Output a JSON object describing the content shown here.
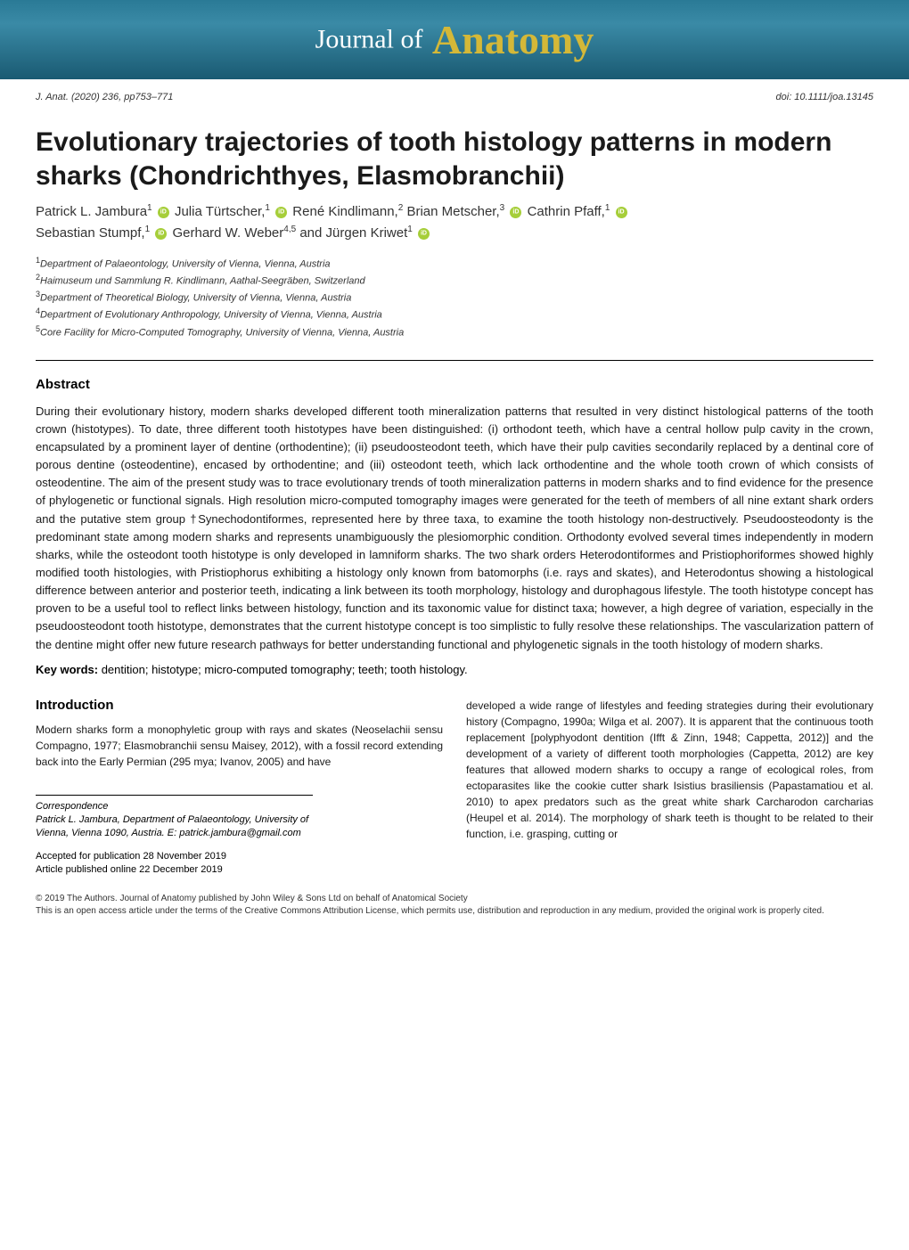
{
  "banner": {
    "journal_of": "Journal of",
    "anatomy": "Anatomy"
  },
  "meta": {
    "citation": "J. Anat. (2020) 236, pp753–771",
    "doi": "doi: 10.1111/joa.13145"
  },
  "title": "Evolutionary trajectories of tooth histology patterns in modern sharks (Chondrichthyes, Elasmobranchii)",
  "authors": [
    {
      "name": "Patrick L. Jambura",
      "sup": "1",
      "orcid": true
    },
    {
      "name": "Julia Türtscher,",
      "sup": "1",
      "orcid": true
    },
    {
      "name": "René Kindlimann,",
      "sup": "2",
      "orcid": false
    },
    {
      "name": "Brian Metscher,",
      "sup": "3",
      "orcid": true
    },
    {
      "name": "Cathrin Pfaff,",
      "sup": "1",
      "orcid": true
    },
    {
      "name": "Sebastian Stumpf,",
      "sup": "1",
      "orcid": true
    },
    {
      "name": "Gerhard W. Weber",
      "sup": "4,5",
      "orcid": false
    },
    {
      "name": "and Jürgen Kriwet",
      "sup": "1",
      "orcid": true
    }
  ],
  "affiliations": [
    {
      "num": "1",
      "text": "Department of Palaeontology, University of Vienna, Vienna, Austria"
    },
    {
      "num": "2",
      "text": "Haimuseum und Sammlung R. Kindlimann, Aathal-Seegräben, Switzerland"
    },
    {
      "num": "3",
      "text": "Department of Theoretical Biology, University of Vienna, Vienna, Austria"
    },
    {
      "num": "4",
      "text": "Department of Evolutionary Anthropology, University of Vienna, Vienna, Austria"
    },
    {
      "num": "5",
      "text": "Core Facility for Micro-Computed Tomography, University of Vienna, Vienna, Austria"
    }
  ],
  "abstract": {
    "heading": "Abstract",
    "text": "During their evolutionary history, modern sharks developed different tooth mineralization patterns that resulted in very distinct histological patterns of the tooth crown (histotypes). To date, three different tooth histotypes have been distinguished: (i) orthodont teeth, which have a central hollow pulp cavity in the crown, encapsulated by a prominent layer of dentine (orthodentine); (ii) pseudoosteodont teeth, which have their pulp cavities secondarily replaced by a dentinal core of porous dentine (osteodentine), encased by orthodentine; and (iii) osteodont teeth, which lack orthodentine and the whole tooth crown of which consists of osteodentine. The aim of the present study was to trace evolutionary trends of tooth mineralization patterns in modern sharks and to find evidence for the presence of phylogenetic or functional signals. High resolution micro-computed tomography images were generated for the teeth of members of all nine extant shark orders and the putative stem group †Synechodontiformes, represented here by three taxa, to examine the tooth histology non-destructively. Pseudoosteodonty is the predominant state among modern sharks and represents unambiguously the plesiomorphic condition. Orthodonty evolved several times independently in modern sharks, while the osteodont tooth histotype is only developed in lamniform sharks. The two shark orders Heterodontiformes and Pristiophoriformes showed highly modified tooth histologies, with Pristiophorus exhibiting a histology only known from batomorphs (i.e. rays and skates), and Heterodontus showing a histological difference between anterior and posterior teeth, indicating a link between its tooth morphology, histology and durophagous lifestyle. The tooth histotype concept has proven to be a useful tool to reflect links between histology, function and its taxonomic value for distinct taxa; however, a high degree of variation, especially in the pseudoosteodont tooth histotype, demonstrates that the current histotype concept is too simplistic to fully resolve these relationships. The vascularization pattern of the dentine might offer new future research pathways for better understanding functional and phylogenetic signals in the tooth histology of modern sharks.",
    "keywords_label": "Key words:",
    "keywords_text": " dentition; histotype; micro-computed tomography; teeth; tooth histology."
  },
  "intro": {
    "heading": "Introduction",
    "left_text": "Modern sharks form a monophyletic group with rays and skates (Neoselachii sensu Compagno, 1977; Elasmobranchii sensu Maisey, 2012), with a fossil record extending back into the Early Permian (295 mya; Ivanov, 2005) and have",
    "right_text": "developed a wide range of lifestyles and feeding strategies during their evolutionary history (Compagno, 1990a; Wilga et al. 2007). It is apparent that the continuous tooth replacement [polyphyodont dentition (Ifft & Zinn, 1948; Cappetta, 2012)] and the development of a variety of different tooth morphologies (Cappetta, 2012) are key features that allowed modern sharks to occupy a range of ecological roles, from ectoparasites like the cookie cutter shark Isistius brasiliensis (Papastamatiou et al. 2010) to apex predators such as the great white shark Carcharodon carcharias (Heupel et al. 2014). The morphology of shark teeth is thought to be related to their function, i.e. grasping, cutting or"
  },
  "correspondence": {
    "label": "Correspondence",
    "text": "Patrick L. Jambura, Department of Palaeontology, University of Vienna, Vienna 1090, Austria. E: patrick.jambura@gmail.com"
  },
  "dates": {
    "accepted": "Accepted for publication 28 November 2019",
    "published": "Article published online 22 December 2019"
  },
  "footer": {
    "copyright": "© 2019 The Authors. Journal of Anatomy published by John Wiley & Sons Ltd on behalf of Anatomical Society",
    "license": "This is an open access article under the terms of the Creative Commons Attribution License, which permits use, distribution and reproduction in any medium, provided the original work is properly cited."
  },
  "colors": {
    "banner_bg_top": "#2a7a96",
    "banner_bg_bottom": "#1a5a72",
    "anatomy_color": "#d4b838",
    "journal_of_color": "#ffffff",
    "orcid_green": "#a6ce39",
    "text_color": "#1a1a1a"
  }
}
